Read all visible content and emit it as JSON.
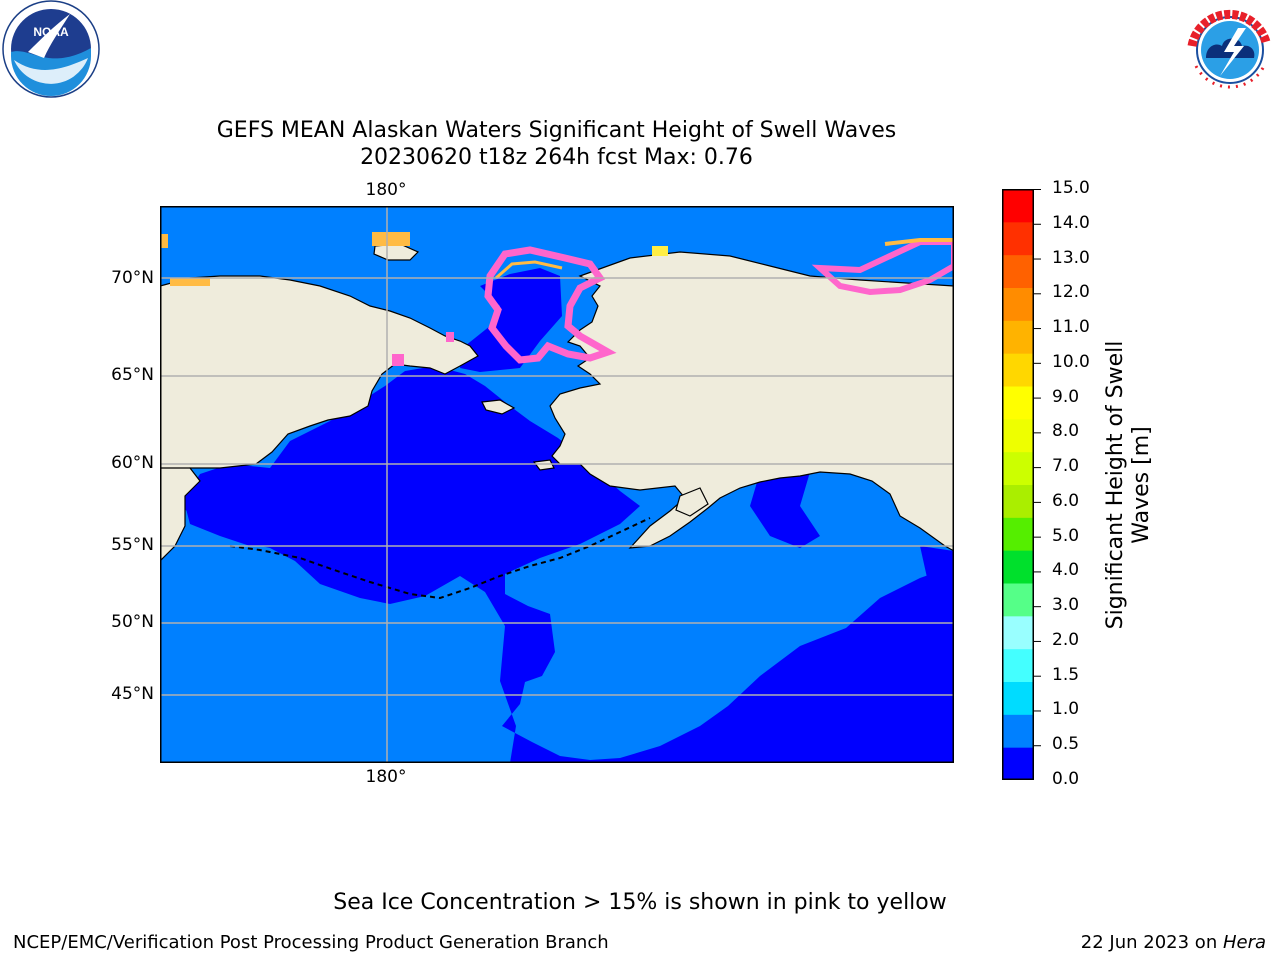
{
  "header": {
    "title_line1": "GEFS MEAN Alaskan Waters Significant Height of Swell Waves",
    "title_line2": "20230620 t18z 264h fcst   Max: 0.76"
  },
  "logos": {
    "noaa_text": "NOAA",
    "noaa_ring": "NATIONAL OCEANIC AND ATMOSPHERIC ADMINISTRATION · U.S. DEPARTMENT OF COMMERCE",
    "nws_ring": "NATIONAL WEATHER SERVICE"
  },
  "map": {
    "lon_label_top": "180°",
    "lon_label_bottom": "180°",
    "lat_labels": [
      "70°N",
      "65°N",
      "60°N",
      "55°N",
      "50°N",
      "45°N"
    ],
    "colors": {
      "land": "#efecdc",
      "swell_0_0p5": "#0000ff",
      "swell_0p5_1": "#0080ff",
      "grid": "#b0b0b0",
      "ice_pink": "#ff66cc",
      "ice_orange": "#ffbb44",
      "ice_yellow": "#ffee44"
    }
  },
  "colorbar": {
    "label": "Significant Height of Swell Waves [m]",
    "label_line1": "Significant Height of Swell",
    "label_line2": "Waves [m]",
    "ticks": [
      "15.0",
      "14.0",
      "13.0",
      "12.0",
      "11.0",
      "10.0",
      "9.0",
      "8.0",
      "7.0",
      "6.0",
      "5.0",
      "4.0",
      "3.0",
      "2.0",
      "1.5",
      "1.0",
      "0.5",
      "0.0"
    ],
    "colors_bottom_to_top": [
      "#0000ff",
      "#0080ff",
      "#00dcff",
      "#44ffff",
      "#99ffff",
      "#55ff88",
      "#00e02c",
      "#55ee00",
      "#aaee00",
      "#ccff00",
      "#eeff00",
      "#ffff00",
      "#ffd700",
      "#ffb300",
      "#ff8c00",
      "#ff6100",
      "#ff3000",
      "#ff0000"
    ]
  },
  "annotation": "Sea Ice Concentration > 15% is shown in pink to yellow",
  "footer": {
    "left": "NCEP/EMC/Verification Post Processing Product Generation Branch",
    "right_prefix": "22 Jun 2023 on ",
    "right_machine": "Hera"
  }
}
